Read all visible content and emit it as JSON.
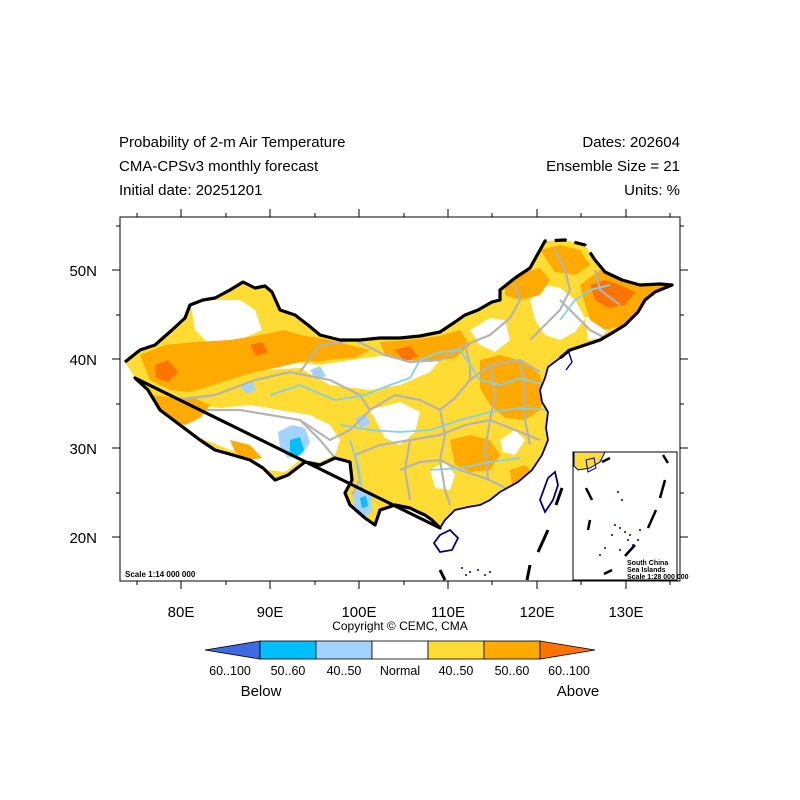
{
  "header": {
    "title_line1": "Probability of 2-m Air Temperature",
    "title_line2": "CMA-CPSv3 monthly forecast",
    "title_line3": "Initial date: 20251201",
    "dates": "Dates: 202604",
    "ensemble": "Ensemble Size = 21",
    "units": "Units: %"
  },
  "map": {
    "x_ticks": [
      "80E",
      "90E",
      "100E",
      "110E",
      "120E",
      "130E"
    ],
    "y_ticks": [
      "50N",
      "40N",
      "30N",
      "20N"
    ],
    "scale_main": "Scale 1:14 000 000",
    "inset_line1": "South China",
    "inset_line2": "Sea Islands",
    "inset_scale": "Scale 1:28 000 000",
    "copyright": "Copyright © CEMC, CMA"
  },
  "legend": {
    "bins": [
      {
        "label": "60..100",
        "color": "#4169e1"
      },
      {
        "label": "50..60",
        "color": "#00bfff"
      },
      {
        "label": "40..50",
        "color": "#a3d2ff"
      },
      {
        "label": "Normal",
        "color": "#ffffff"
      },
      {
        "label": "40..50",
        "color": "#ffdc33"
      },
      {
        "label": "50..60",
        "color": "#ffaa00"
      },
      {
        "label": "60..100",
        "color": "#ff7400"
      }
    ],
    "below_label": "Below",
    "above_label": "Above"
  },
  "colors": {
    "border": "#000000",
    "province": "#b4b4b4",
    "river": "#87ceeb",
    "coast": "#000080"
  }
}
